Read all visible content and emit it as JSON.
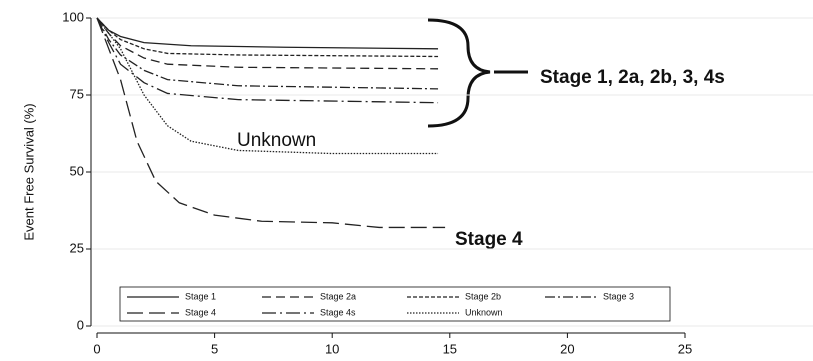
{
  "chart_data": {
    "type": "line",
    "y_label": "Event Free Survival (%)",
    "xlim": [
      0,
      25
    ],
    "ylim": [
      0,
      100
    ],
    "xticks": [
      0,
      5,
      10,
      15,
      20,
      25
    ],
    "yticks": [
      0,
      25,
      50,
      75,
      100
    ],
    "grid": true,
    "annotations": [
      "Stage 1, 2a, 2b, 3, 4s",
      "Unknown",
      "Stage 4"
    ],
    "series": [
      {
        "name": "Stage 1",
        "color": "#222222",
        "dash": "solid",
        "x": [
          0,
          0.5,
          1,
          2,
          4,
          8,
          14.5
        ],
        "values": [
          100,
          96,
          94,
          92,
          91,
          90.5,
          90
        ]
      },
      {
        "name": "Stage 2a",
        "color": "#222222",
        "dash": "dashed",
        "x": [
          0,
          0.5,
          1,
          2,
          3,
          6,
          14.5
        ],
        "values": [
          100,
          95,
          91,
          87,
          85,
          84,
          83.5
        ]
      },
      {
        "name": "Stage 2b",
        "color": "#222222",
        "dash": "shortdash",
        "x": [
          0,
          0.5,
          1,
          2,
          3,
          6,
          14.5
        ],
        "values": [
          100,
          96,
          93,
          90,
          88.5,
          88,
          87.5
        ]
      },
      {
        "name": "Stage 3",
        "color": "#222222",
        "dash": "dashdot",
        "x": [
          0,
          0.5,
          1,
          2,
          3,
          6,
          14.5
        ],
        "values": [
          100,
          93,
          88,
          83,
          80,
          78,
          77
        ]
      },
      {
        "name": "Stage 4",
        "color": "#222222",
        "dash": "longdash",
        "x": [
          0,
          0.5,
          1,
          1.7,
          2.5,
          3.5,
          5,
          7,
          10,
          12,
          14.8
        ],
        "values": [
          100,
          90,
          80,
          60,
          47,
          40,
          36,
          34,
          33.5,
          32,
          32
        ]
      },
      {
        "name": "Stage 4s",
        "color": "#222222",
        "dash": "longdashdot",
        "x": [
          0,
          0.5,
          1,
          2,
          3,
          6,
          14.5
        ],
        "values": [
          100,
          92,
          85,
          79,
          75.5,
          73.5,
          72.5
        ]
      },
      {
        "name": "Unknown",
        "color": "#222222",
        "dash": "dotted",
        "x": [
          0,
          0.5,
          1,
          2,
          3,
          4,
          6,
          10,
          14.5
        ],
        "values": [
          100,
          95,
          90,
          75,
          65,
          60,
          57,
          56,
          56
        ]
      }
    ]
  }
}
